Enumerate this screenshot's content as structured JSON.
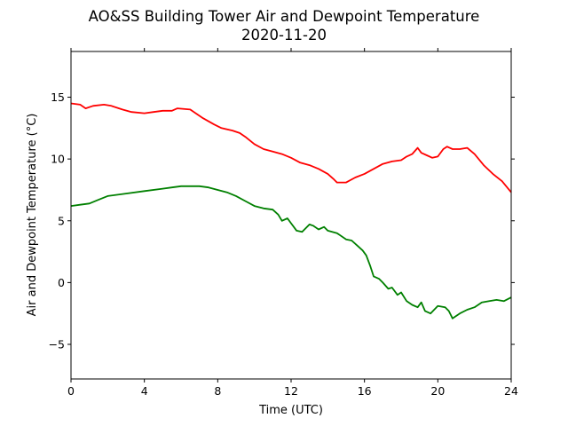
{
  "chart_data": {
    "type": "line",
    "title": "AO&SS Building Tower Air and Dewpoint Temperature",
    "subtitle": "2020-11-20",
    "xlabel": "Time (UTC)",
    "ylabel": "Air and Dewpoint Temperature (°C)",
    "xlim": [
      0,
      24
    ],
    "ylim": [
      -7.8,
      18.7
    ],
    "xticks": [
      0,
      4,
      8,
      12,
      16,
      20,
      24
    ],
    "yticks": [
      -5,
      0,
      5,
      10,
      15
    ],
    "grid": false,
    "legend": "none",
    "series": [
      {
        "color": "#ff0000",
        "x": [
          0,
          0.5,
          0.8,
          1.2,
          1.8,
          2.2,
          2.8,
          3.3,
          4.0,
          4.5,
          5.0,
          5.5,
          5.8,
          6.5,
          6.8,
          7.2,
          7.8,
          8.2,
          8.8,
          9.2,
          9.5,
          10.0,
          10.5,
          11.0,
          11.5,
          12.0,
          12.5,
          13.0,
          13.5,
          14.0,
          14.3,
          14.5,
          15.0,
          15.5,
          16.0,
          16.5,
          17.0,
          17.5,
          18.0,
          18.3,
          18.6,
          18.9,
          19.1,
          19.4,
          19.7,
          20.0,
          20.3,
          20.5,
          20.8,
          21.2,
          21.6,
          22.0,
          22.5,
          23.0,
          23.5,
          24.0
        ],
        "y": [
          14.5,
          14.4,
          14.1,
          14.3,
          14.4,
          14.3,
          14.0,
          13.8,
          13.7,
          13.8,
          13.9,
          13.9,
          14.1,
          14.0,
          13.7,
          13.3,
          12.8,
          12.5,
          12.3,
          12.1,
          11.8,
          11.2,
          10.8,
          10.6,
          10.4,
          10.1,
          9.7,
          9.5,
          9.2,
          8.8,
          8.4,
          8.1,
          8.1,
          8.5,
          8.8,
          9.2,
          9.6,
          9.8,
          9.9,
          10.2,
          10.4,
          10.9,
          10.5,
          10.3,
          10.1,
          10.2,
          10.8,
          11.0,
          10.8,
          10.8,
          10.9,
          10.4,
          9.5,
          8.8,
          8.2,
          7.3
        ]
      },
      {
        "color": "#008000",
        "x": [
          0,
          0.5,
          1.0,
          1.5,
          2.0,
          3.0,
          4.0,
          5.0,
          5.5,
          6.0,
          6.5,
          7.0,
          7.5,
          8.0,
          8.5,
          9.0,
          9.5,
          10.0,
          10.5,
          11.0,
          11.3,
          11.5,
          11.8,
          12.0,
          12.3,
          12.6,
          12.8,
          13.0,
          13.2,
          13.5,
          13.8,
          14.0,
          14.5,
          15.0,
          15.3,
          15.6,
          15.9,
          16.1,
          16.3,
          16.5,
          16.8,
          17.0,
          17.3,
          17.5,
          17.8,
          18.0,
          18.3,
          18.6,
          18.9,
          19.1,
          19.3,
          19.6,
          20.0,
          20.4,
          20.6,
          20.8,
          21.2,
          21.6,
          22.0,
          22.4,
          22.8,
          23.2,
          23.6,
          24.0
        ],
        "y": [
          6.2,
          6.3,
          6.4,
          6.7,
          7.0,
          7.2,
          7.4,
          7.6,
          7.7,
          7.8,
          7.8,
          7.8,
          7.7,
          7.5,
          7.3,
          7.0,
          6.6,
          6.2,
          6.0,
          5.9,
          5.5,
          5.0,
          5.2,
          4.8,
          4.2,
          4.1,
          4.4,
          4.7,
          4.6,
          4.3,
          4.5,
          4.2,
          4.0,
          3.5,
          3.4,
          3.0,
          2.6,
          2.2,
          1.4,
          0.5,
          0.3,
          0.0,
          -0.5,
          -0.4,
          -1.0,
          -0.8,
          -1.5,
          -1.8,
          -2.0,
          -1.6,
          -2.3,
          -2.5,
          -1.9,
          -2.0,
          -2.3,
          -2.9,
          -2.5,
          -2.2,
          -2.0,
          -1.6,
          -1.5,
          -1.4,
          -1.5,
          -1.2
        ]
      }
    ]
  }
}
